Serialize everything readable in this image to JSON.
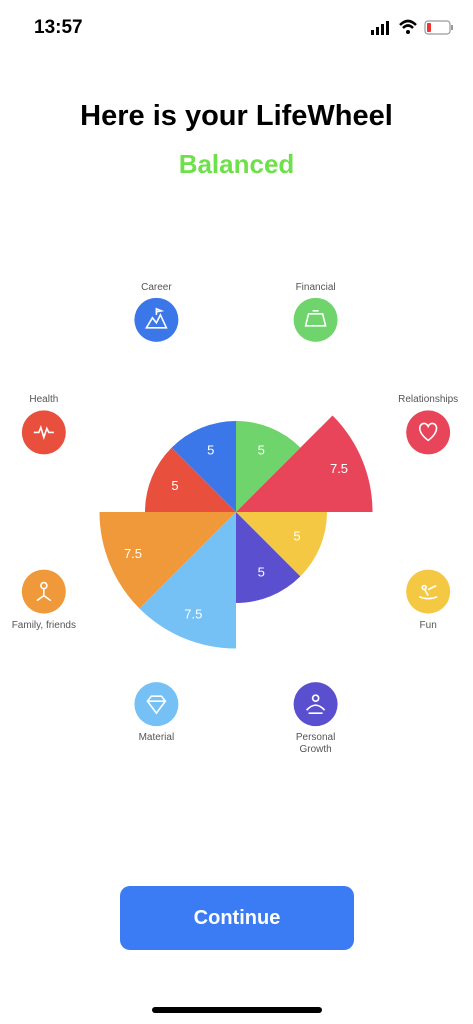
{
  "status_bar": {
    "time": "13:57"
  },
  "header": {
    "title": "Here is your LifeWheel",
    "subtitle": "Balanced"
  },
  "chart_data": {
    "type": "polar-area",
    "categories": [
      "Financial",
      "Relationships",
      "Fun",
      "Personal Growth",
      "Material",
      "Family, friends",
      "Health",
      "Career"
    ],
    "values": [
      5,
      7.5,
      5,
      5,
      7.5,
      7.5,
      5,
      5
    ],
    "colors": [
      "#6fd46b",
      "#e8455a",
      "#f5c844",
      "#5a4fcf",
      "#75c1f5",
      "#f0993a",
      "#e8503d",
      "#3b77e8"
    ],
    "rlim": [
      0,
      10
    ]
  },
  "button": {
    "label": "Continue"
  }
}
